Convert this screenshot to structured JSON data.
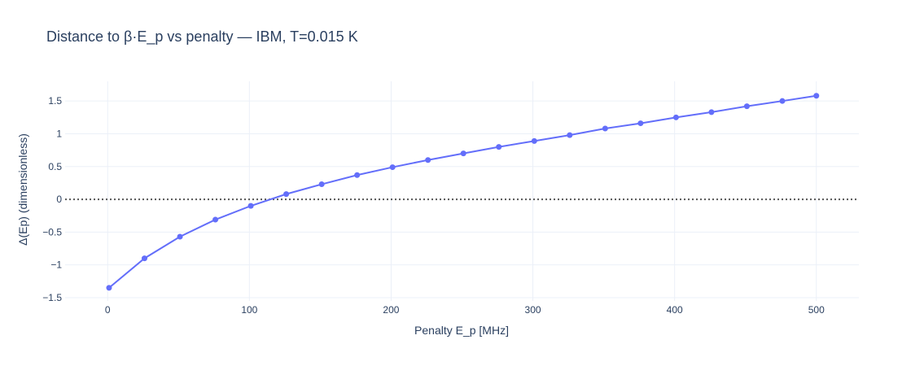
{
  "chart_data": {
    "type": "line",
    "title": "Distance to β·E_p vs penalty — IBM, T=0.015 K",
    "xlabel": "Penalty E_p [MHz]",
    "ylabel": "Δ(Ep) (dimensionless)",
    "xlim": [
      -30,
      530
    ],
    "ylim": [
      -1.55,
      1.8
    ],
    "xticks": [
      0,
      100,
      200,
      300,
      400,
      500
    ],
    "xtick_labels": [
      "0",
      "100",
      "200",
      "300",
      "400",
      "500"
    ],
    "yticks": [
      -1.5,
      -1,
      -0.5,
      0,
      0.5,
      1,
      1.5
    ],
    "ytick_labels": [
      "−1.5",
      "−1",
      "−0.5",
      "0",
      "0.5",
      "1",
      "1.5"
    ],
    "grid": true,
    "reference_line": {
      "y": 0,
      "style": "dotted",
      "color": "#555555"
    },
    "series": [
      {
        "color": "#636efa",
        "mode": "lines+markers",
        "x": [
          1,
          26,
          51,
          76,
          101,
          126,
          151,
          176,
          201,
          226,
          251,
          276,
          301,
          326,
          351,
          376,
          401,
          426,
          451,
          476,
          500
        ],
        "y": [
          -1.35,
          -0.9,
          -0.57,
          -0.31,
          -0.1,
          0.08,
          0.23,
          0.37,
          0.49,
          0.6,
          0.7,
          0.8,
          0.89,
          0.98,
          1.08,
          1.16,
          1.25,
          1.33,
          1.42,
          1.5,
          1.58
        ]
      }
    ]
  }
}
